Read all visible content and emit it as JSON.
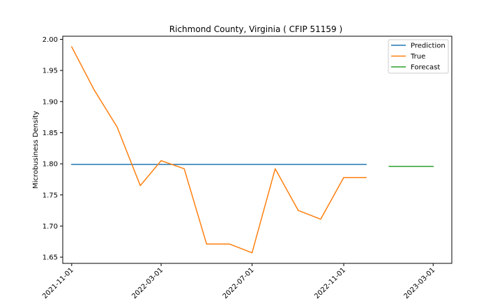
{
  "chart_data": {
    "type": "line",
    "title": "Richmond County, Virginia ( CFIP 51159 )",
    "xlabel": "",
    "ylabel": "Microbusiness Density",
    "x_axis_type": "date",
    "xlim": [
      "2021-10-20",
      "2023-03-26"
    ],
    "ylim": [
      1.64,
      2.005
    ],
    "x_ticks": [
      "2021-11-01",
      "2022-03-01",
      "2022-07-01",
      "2022-11-01",
      "2023-03-01"
    ],
    "y_ticks": [
      1.65,
      1.7,
      1.75,
      1.8,
      1.85,
      1.9,
      1.95,
      2.0
    ],
    "y_tick_labels": [
      "1.65",
      "1.70",
      "1.75",
      "1.80",
      "1.85",
      "1.90",
      "1.95",
      "2.00"
    ],
    "grid": false,
    "legend_position": "top-right",
    "series": [
      {
        "name": "Prediction",
        "color": "#1f77b4",
        "x": [
          "2021-11-01",
          "2022-12-01"
        ],
        "y": [
          1.799,
          1.799
        ]
      },
      {
        "name": "True",
        "color": "#ff7f0e",
        "x": [
          "2021-11-01",
          "2021-12-01",
          "2022-01-01",
          "2022-02-01",
          "2022-03-01",
          "2022-04-01",
          "2022-05-01",
          "2022-06-01",
          "2022-07-01",
          "2022-08-01",
          "2022-09-01",
          "2022-10-01",
          "2022-11-01",
          "2022-12-01"
        ],
        "y": [
          1.988,
          1.919,
          1.859,
          1.765,
          1.805,
          1.792,
          1.671,
          1.671,
          1.657,
          1.792,
          1.725,
          1.711,
          1.778,
          1.778
        ]
      },
      {
        "name": "Forecast",
        "color": "#2ca02c",
        "x": [
          "2023-01-01",
          "2023-03-01"
        ],
        "y": [
          1.796,
          1.796
        ]
      }
    ]
  }
}
